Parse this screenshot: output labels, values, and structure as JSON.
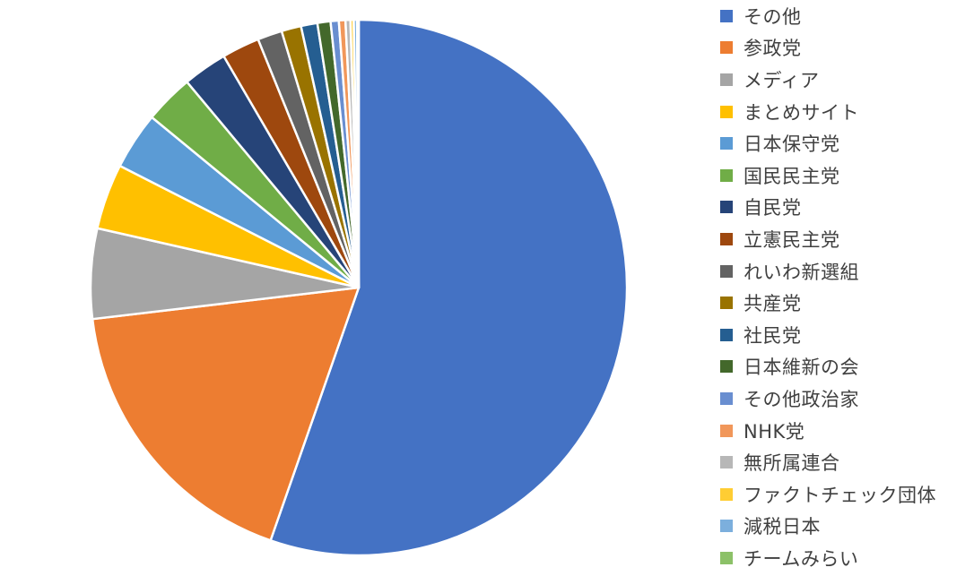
{
  "chart_data": {
    "type": "pie",
    "title": "",
    "legend_position": "right",
    "start_angle_deg": 0,
    "direction": "clockwise",
    "slice_border_color": "#ffffff",
    "series": [
      {
        "name": "その他",
        "value": 56.0,
        "color": "#4472C4"
      },
      {
        "name": "参政党",
        "value": 18.0,
        "color": "#ED7D31"
      },
      {
        "name": "メディア",
        "value": 5.5,
        "color": "#A5A5A5"
      },
      {
        "name": "まとめサイト",
        "value": 4.0,
        "color": "#FFC000"
      },
      {
        "name": "日本保守党",
        "value": 3.5,
        "color": "#5B9BD5"
      },
      {
        "name": "国民民主党",
        "value": 3.0,
        "color": "#70AD47"
      },
      {
        "name": "自民党",
        "value": 2.7,
        "color": "#264478"
      },
      {
        "name": "立憲民主党",
        "value": 2.3,
        "color": "#9E480E"
      },
      {
        "name": "れいわ新選組",
        "value": 1.5,
        "color": "#636363"
      },
      {
        "name": "共産党",
        "value": 1.2,
        "color": "#997300"
      },
      {
        "name": "社民党",
        "value": 1.0,
        "color": "#255E91"
      },
      {
        "name": "日本維新の会",
        "value": 0.8,
        "color": "#43682B"
      },
      {
        "name": "その他政治家",
        "value": 0.5,
        "color": "#698ED0"
      },
      {
        "name": "NHK党",
        "value": 0.4,
        "color": "#F1975A"
      },
      {
        "name": "無所属連合",
        "value": 0.3,
        "color": "#B7B7B7"
      },
      {
        "name": "ファクトチェック団体",
        "value": 0.2,
        "color": "#FFCD33"
      },
      {
        "name": "減税日本",
        "value": 0.2,
        "color": "#7CAFDD"
      },
      {
        "name": "チームみらい",
        "value": 0.1,
        "color": "#8CC168"
      }
    ]
  }
}
